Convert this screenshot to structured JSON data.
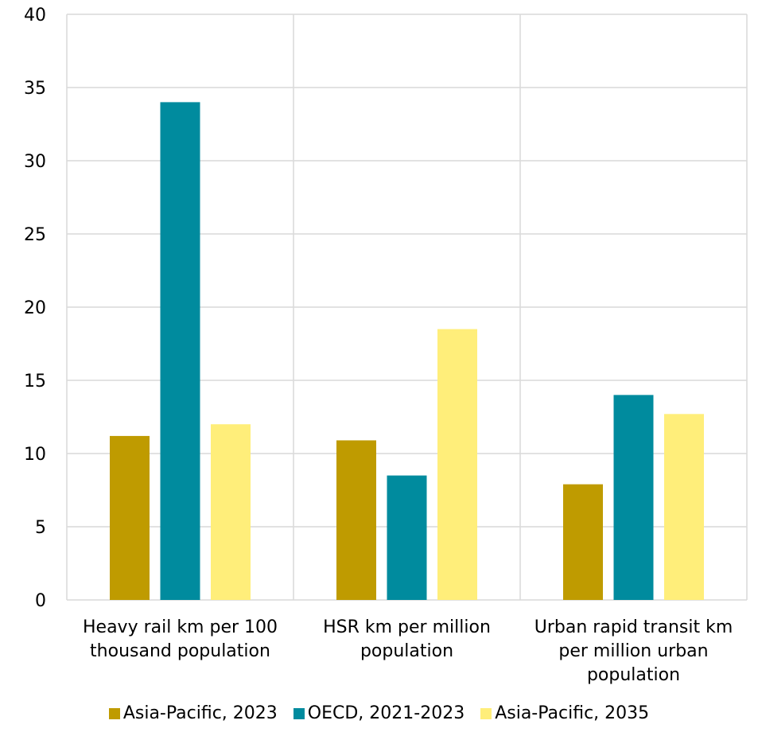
{
  "chart_data": {
    "type": "bar",
    "categories": [
      [
        "Heavy rail km per 100",
        "thousand population"
      ],
      [
        "HSR km per million",
        "population"
      ],
      [
        "Urban rapid transit km",
        "per million urban",
        "population"
      ]
    ],
    "series": [
      {
        "name": "Asia-Pacific, 2023",
        "color": "#BF9B00",
        "values": [
          11.2,
          10.9,
          7.9
        ]
      },
      {
        "name": "OECD, 2021-2023",
        "color": "#008B9E",
        "values": [
          34.0,
          8.5,
          14.0
        ]
      },
      {
        "name": "Asia-Pacific, 2035",
        "color": "#FFEE7A",
        "values": [
          12.0,
          18.5,
          12.7
        ]
      }
    ],
    "ylim": [
      0,
      40
    ],
    "yticks": [
      "0",
      "5",
      "10",
      "15",
      "20",
      "25",
      "30",
      "35",
      "40"
    ],
    "grid": "horizontal and vertical",
    "legend": "bottom",
    "title": "",
    "xlabel": "",
    "ylabel": ""
  }
}
